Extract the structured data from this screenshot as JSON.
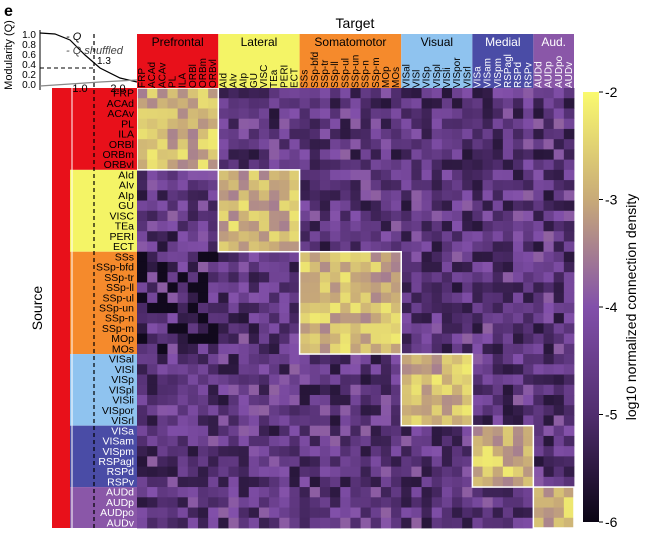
{
  "panel_label": "e",
  "colors": {
    "group_prefrontal": "#e8101a",
    "group_lateral": "#f4f466",
    "group_somatomotor": "#f58a2c",
    "group_visual": "#8fc3ef",
    "group_medial": "#4a4ca6",
    "group_aud": "#8a57a8",
    "frame": "#ffffff"
  },
  "chart_data": {
    "type": "heatmap",
    "title": "Target",
    "xlabel": "Target",
    "ylabel": "Source",
    "colorbar_label": "log10 normalized connection density",
    "colorbar_ticks": [
      "-2",
      "-3",
      "-4",
      "-5",
      "-6"
    ],
    "colorbar_range": [
      -6,
      -2
    ],
    "groups": [
      {
        "name": "Prefrontal",
        "regions": [
          "FRP",
          "ACAd",
          "ACAv",
          "PL",
          "ILA",
          "ORBl",
          "ORBm",
          "ORBvl"
        ]
      },
      {
        "name": "Lateral",
        "regions": [
          "AId",
          "AIv",
          "AIp",
          "GU",
          "VISC",
          "TEa",
          "PERI",
          "ECT"
        ]
      },
      {
        "name": "Somatomotor",
        "regions": [
          "SSs",
          "SSp-bfd",
          "SSp-tr",
          "SSp-ll",
          "SSp-ul",
          "SSp-un",
          "SSp-n",
          "SSp-m",
          "MOp",
          "MOs"
        ]
      },
      {
        "name": "Visual",
        "regions": [
          "VISal",
          "VISl",
          "VISp",
          "VISpl",
          "VISli",
          "VISpor",
          "VISrl"
        ]
      },
      {
        "name": "Medial",
        "regions": [
          "VISa",
          "VISam",
          "VISpm",
          "RSPagl",
          "RSPd",
          "RSPv"
        ]
      },
      {
        "name": "Aud.",
        "regions": [
          "AUDd",
          "AUDp",
          "AUDpo",
          "AUDv"
        ]
      }
    ],
    "matrix_note": "43 x 43 matrix; within-module blocks mostly -2.5 to -3.5, between-module mostly -4 to -5.5",
    "inset": {
      "ylabel": "Modularity (Q)",
      "yticks": [
        "1.0",
        "0.8",
        "0.6",
        "0.4",
        "0.2",
        "0.0"
      ],
      "xticks": [
        "1.0",
        "2.0"
      ],
      "marker_label": "1.3",
      "legend": [
        "Q",
        "Q shuffled"
      ]
    }
  }
}
